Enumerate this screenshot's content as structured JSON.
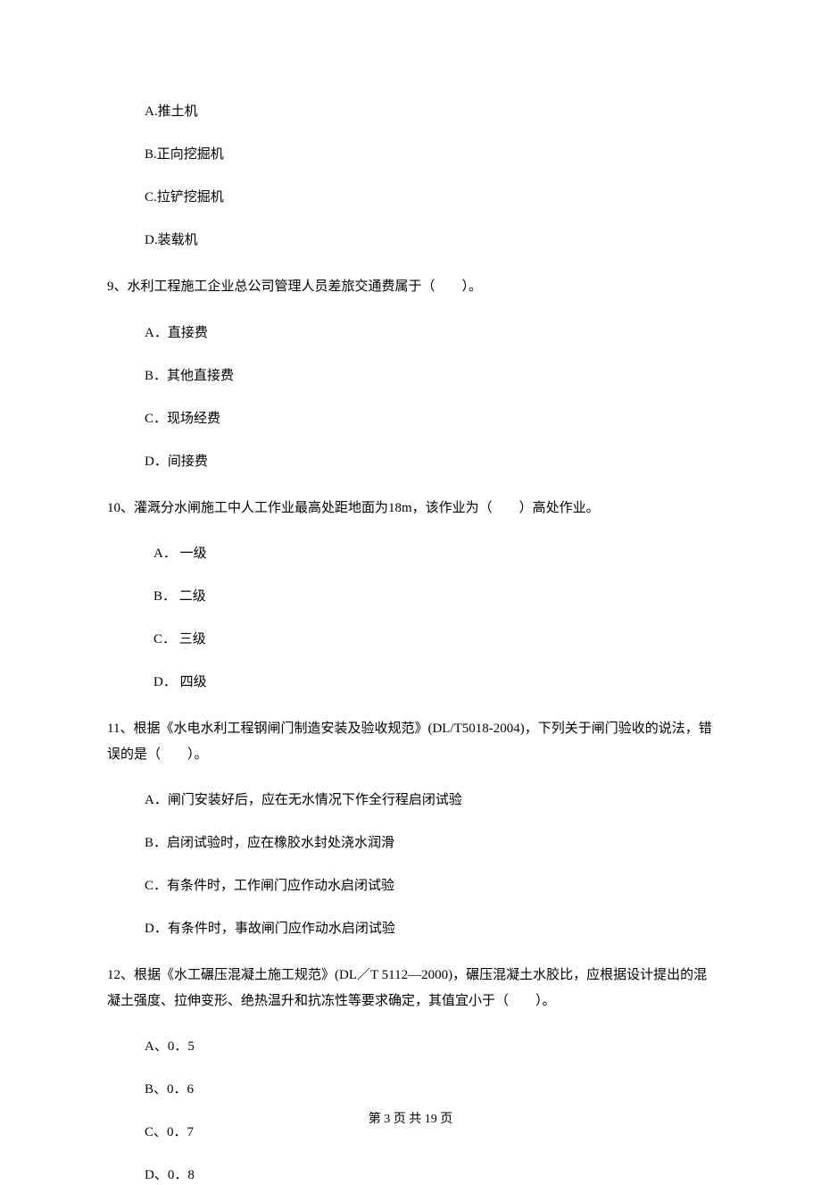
{
  "q8_options": {
    "a": "A.推土机",
    "b": "B.正向挖掘机",
    "c": "C.拉铲挖掘机",
    "d": "D.装载机"
  },
  "q9": {
    "text": "9、水利工程施工企业总公司管理人员差旅交通费属于（　　）。",
    "a": "A．直接费",
    "b": "B．其他直接费",
    "c": "C．现场经费",
    "d": "D．间接费"
  },
  "q10": {
    "text": "10、灌溉分水闸施工中人工作业最高处距地面为18m，该作业为（　　）高处作业。",
    "a": "A． 一级",
    "b": "B． 二级",
    "c": "C． 三级",
    "d": "D． 四级"
  },
  "q11": {
    "text": "11、根据《水电水利工程钢闸门制造安装及验收规范》(DL/T5018-2004)，下列关于闸门验收的说法，错误的是（　　）。",
    "a": "A．闸门安装好后，应在无水情况下作全行程启闭试验",
    "b": "B．启闭试验时，应在橡胶水封处浇水润滑",
    "c": "C．有条件时，工作闸门应作动水启闭试验",
    "d": "D．有条件时，事故闸门应作动水启闭试验"
  },
  "q12": {
    "text": "12、根据《水工碾压混凝土施工规范》(DL／T 5112—2000)，碾压混凝土水胶比，应根据设计提出的混凝土强度、拉伸变形、绝热温升和抗冻性等要求确定，其值宜小于（　　）。",
    "a": "A、0．5",
    "b": "B、0．6",
    "c": "C、0．7",
    "d": "D、0．8"
  },
  "footer": "第 3 页 共 19 页"
}
